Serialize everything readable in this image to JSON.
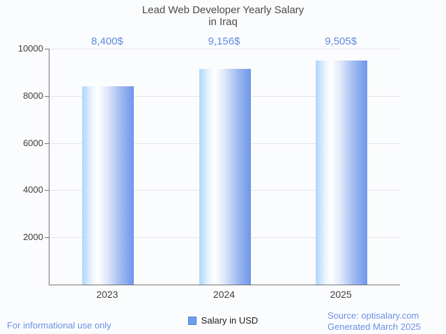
{
  "title": {
    "line1": "Lead Web Developer Yearly Salary",
    "line2": "in Iraq"
  },
  "chart_data": {
    "type": "bar",
    "title": "Lead Web Developer Yearly Salary in Iraq",
    "categories": [
      "2023",
      "2024",
      "2025"
    ],
    "values": [
      8400,
      9156,
      9505
    ],
    "value_labels": [
      "8,400$",
      "9,156$",
      "9,505$"
    ],
    "series_name": "Salary in USD",
    "xlabel": "",
    "ylabel": "",
    "ylim": [
      0,
      10000
    ],
    "yticks": [
      2000,
      4000,
      6000,
      8000,
      10000
    ],
    "grid": true,
    "legend_position": "bottom-center"
  },
  "legend": {
    "label": "Salary in USD"
  },
  "footer": {
    "disclaimer": "For informational use only",
    "source": "Source: optisalary.com",
    "generated": "Generated March 2025"
  },
  "colors": {
    "background": "#fbfcfe",
    "title_text": "#4a4a4a",
    "tick_text": "#3d3d3d",
    "accent_text": "#6289dd",
    "footer_text": "#6b90e4",
    "gridline": "#e4e4e8",
    "axis": "#757575",
    "legend_square_fill": "#6d9eeb",
    "legend_square_border": "#4d7fd1",
    "bar_gradient_stops": [
      "#abd7fd 0%",
      "#e9f3fe 18%",
      "#ffffff 30%",
      "#dce5f9 50%",
      "#9fb9f0 75%",
      "#6d96ea 100%"
    ]
  }
}
